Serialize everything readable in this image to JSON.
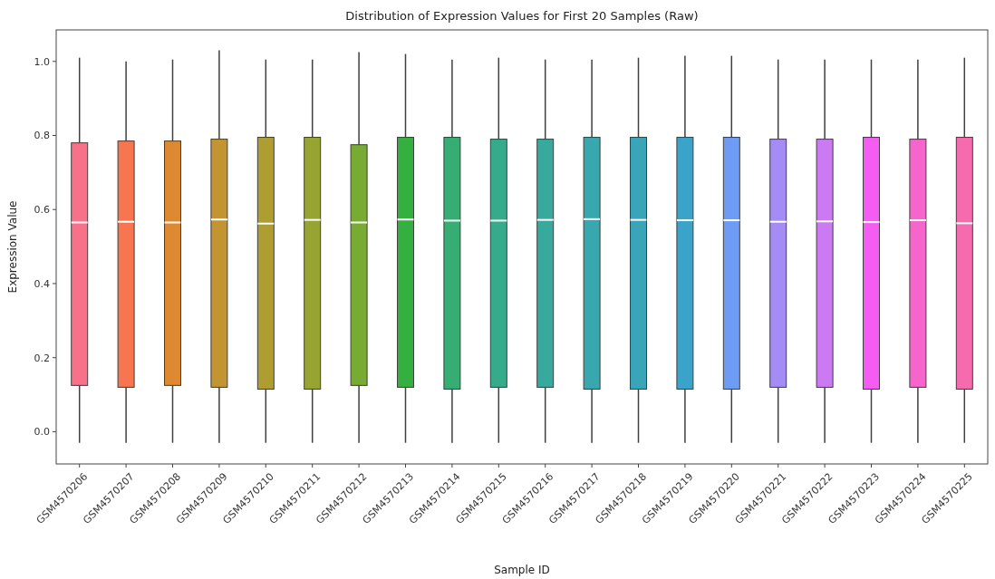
{
  "chart_data": {
    "type": "box",
    "title": "Distribution of Expression Values for First 20 Samples (Raw)",
    "xlabel": "Sample ID",
    "ylabel": "Expression Value",
    "categories": [
      "GSM4570206",
      "GSM4570207",
      "GSM4570208",
      "GSM4570209",
      "GSM4570210",
      "GSM4570211",
      "GSM4570212",
      "GSM4570213",
      "GSM4570214",
      "GSM4570215",
      "GSM4570216",
      "GSM4570217",
      "GSM4570218",
      "GSM4570219",
      "GSM4570220",
      "GSM4570221",
      "GSM4570222",
      "GSM4570223",
      "GSM4570224",
      "GSM4570225"
    ],
    "colors": [
      "#f77189",
      "#f7754f",
      "#dc8932",
      "#c39532",
      "#ae9d31",
      "#97a431",
      "#77ab31",
      "#33b040",
      "#35ad73",
      "#36ab8c",
      "#37aa9d",
      "#39a7ae",
      "#3aa5b9",
      "#3ba3ca",
      "#6e9bf4",
      "#a48cf4",
      "#cc7af4",
      "#f45cf2",
      "#f565cc",
      "#f66bad"
    ],
    "boxes": [
      {
        "low": -0.03,
        "q1": 0.125,
        "median": 0.565,
        "q3": 0.78,
        "high": 1.01
      },
      {
        "low": -0.03,
        "q1": 0.12,
        "median": 0.567,
        "q3": 0.785,
        "high": 1.0
      },
      {
        "low": -0.03,
        "q1": 0.125,
        "median": 0.565,
        "q3": 0.785,
        "high": 1.005
      },
      {
        "low": -0.03,
        "q1": 0.12,
        "median": 0.573,
        "q3": 0.79,
        "high": 1.03
      },
      {
        "low": -0.03,
        "q1": 0.115,
        "median": 0.562,
        "q3": 0.795,
        "high": 1.005
      },
      {
        "low": -0.03,
        "q1": 0.115,
        "median": 0.572,
        "q3": 0.795,
        "high": 1.005
      },
      {
        "low": -0.03,
        "q1": 0.125,
        "median": 0.565,
        "q3": 0.775,
        "high": 1.025
      },
      {
        "low": -0.03,
        "q1": 0.12,
        "median": 0.573,
        "q3": 0.795,
        "high": 1.02
      },
      {
        "low": -0.03,
        "q1": 0.115,
        "median": 0.57,
        "q3": 0.795,
        "high": 1.005
      },
      {
        "low": -0.03,
        "q1": 0.12,
        "median": 0.57,
        "q3": 0.79,
        "high": 1.01
      },
      {
        "low": -0.03,
        "q1": 0.12,
        "median": 0.572,
        "q3": 0.79,
        "high": 1.005
      },
      {
        "low": -0.03,
        "q1": 0.115,
        "median": 0.574,
        "q3": 0.795,
        "high": 1.005
      },
      {
        "low": -0.03,
        "q1": 0.115,
        "median": 0.572,
        "q3": 0.795,
        "high": 1.01
      },
      {
        "low": -0.03,
        "q1": 0.115,
        "median": 0.571,
        "q3": 0.795,
        "high": 1.015
      },
      {
        "low": -0.03,
        "q1": 0.115,
        "median": 0.571,
        "q3": 0.795,
        "high": 1.015
      },
      {
        "low": -0.03,
        "q1": 0.12,
        "median": 0.567,
        "q3": 0.79,
        "high": 1.005
      },
      {
        "low": -0.03,
        "q1": 0.12,
        "median": 0.568,
        "q3": 0.79,
        "high": 1.005
      },
      {
        "low": -0.03,
        "q1": 0.115,
        "median": 0.566,
        "q3": 0.795,
        "high": 1.005
      },
      {
        "low": -0.03,
        "q1": 0.12,
        "median": 0.571,
        "q3": 0.79,
        "high": 1.005
      },
      {
        "low": -0.03,
        "q1": 0.115,
        "median": 0.563,
        "q3": 0.795,
        "high": 1.01
      }
    ],
    "ylim": [
      -0.087,
      1.085
    ],
    "yticks": [
      {
        "value": 0,
        "label": "0.0"
      },
      0.2,
      0.4,
      0.6,
      0.8,
      {
        "value": 1,
        "label": "1.0"
      }
    ]
  }
}
